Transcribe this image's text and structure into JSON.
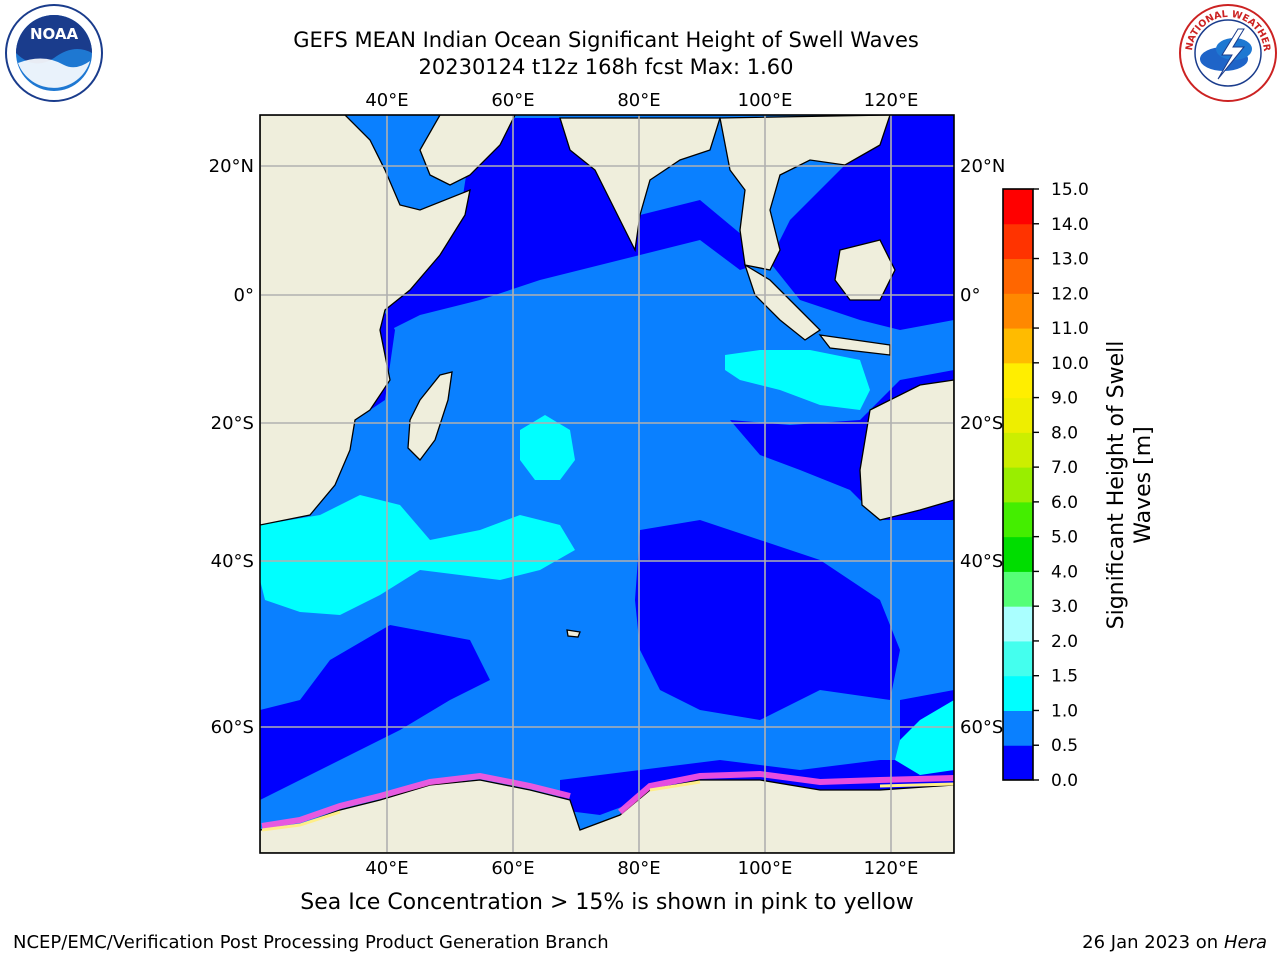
{
  "title_line1": "GEFS MEAN Indian Ocean Significant Height of Swell Waves",
  "title_line2": "20230124 t12z 168h fcst   Max: 1.60",
  "caption": "Sea Ice Concentration > 15% is shown in pink to yellow",
  "footer_left": "NCEP/EMC/Verification Post Processing Product Generation Branch",
  "footer_right_prefix": "26 Jan 2023 on ",
  "footer_right_host": "Hera",
  "logos": {
    "left": "NOAA",
    "right": "NATIONAL WEATHER SERVICE"
  },
  "map": {
    "lon_ticks": [
      "40°E",
      "60°E",
      "80°E",
      "100°E",
      "120°E"
    ],
    "lat_ticks_left": [
      "20°N",
      "0°",
      "20°S",
      "40°S",
      "60°S"
    ],
    "lat_ticks_right": [
      "20°N",
      "0°",
      "20°S",
      "40°S",
      "60°S"
    ],
    "colors": {
      "land": "#efeedc",
      "very_low": "#0000ff",
      "low": "#0a80ff",
      "mid": "#00ffff",
      "ice": "#ff55dd"
    }
  },
  "colorbar": {
    "label_line1": "Significant Height of Swell",
    "label_line2": "Waves [m]",
    "ticks": [
      "0.0",
      "0.5",
      "1.0",
      "1.5",
      "2.0",
      "3.0",
      "4.0",
      "5.0",
      "6.0",
      "7.0",
      "8.0",
      "9.0",
      "10.0",
      "11.0",
      "12.0",
      "13.0",
      "14.0",
      "15.0"
    ],
    "colors": [
      "#0000ff",
      "#0a80ff",
      "#00ffff",
      "#44ffee",
      "#aaffff",
      "#55ff77",
      "#00dd00",
      "#44ee00",
      "#99ee00",
      "#ccee00",
      "#eeee00",
      "#ffee00",
      "#ffbb00",
      "#ff8800",
      "#ff6600",
      "#ff3300",
      "#ff0000"
    ]
  }
}
